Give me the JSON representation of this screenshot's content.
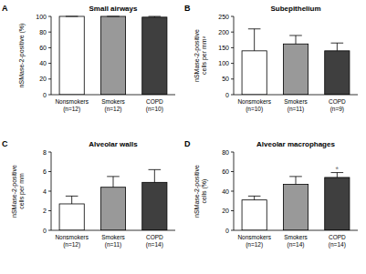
{
  "chart_data": [
    {
      "type": "bar",
      "label": "A",
      "title": "Small airways",
      "y_label": "nSMase-2-positive (%)",
      "categories": [
        "Nonsmokers\n(n=12)",
        "Smokers\n(n=12)",
        "COPD\n(n=10)"
      ],
      "values": [
        100,
        100,
        99
      ],
      "errors": [
        0,
        0,
        1
      ],
      "colors": [
        "#ffffff",
        "#999999",
        "#3f3f3f"
      ],
      "ylim": [
        0,
        100
      ],
      "yticks": [
        0,
        20,
        40,
        60,
        80,
        100
      ]
    },
    {
      "type": "bar",
      "label": "B",
      "title": "Subepithelium",
      "y_label": "nSMase-2-positive\ncells per mm²",
      "categories": [
        "Nonsmokers\n(n=10)",
        "Smokers\n(n=11)",
        "COPD\n(n=9)"
      ],
      "values": [
        140,
        162,
        140
      ],
      "errors": [
        70,
        27,
        25
      ],
      "colors": [
        "#ffffff",
        "#999999",
        "#3f3f3f"
      ],
      "ylim": [
        0,
        250
      ],
      "yticks": [
        0,
        50,
        100,
        150,
        200,
        250
      ]
    },
    {
      "type": "bar",
      "label": "C",
      "title": "Alveolar walls",
      "y_label": "nSMase-2-positive\ncells per mm",
      "categories": [
        "Nonsmokers\n(n=12)",
        "Smokers\n(n=11)",
        "COPD\n(n=14)"
      ],
      "values": [
        2.7,
        4.4,
        4.9
      ],
      "errors": [
        0.8,
        1.1,
        1.3
      ],
      "colors": [
        "#ffffff",
        "#999999",
        "#3f3f3f"
      ],
      "ylim": [
        0,
        8
      ],
      "yticks": [
        0,
        2,
        4,
        6,
        8
      ]
    },
    {
      "type": "bar",
      "label": "D",
      "title": "Alveolar macrophages",
      "y_label": "nSMase-2-positive\ncells (%)",
      "categories": [
        "Nonsmokers\n(n=12)",
        "Smokers\n(n=14)",
        "COPD\n(n=14)"
      ],
      "values": [
        31,
        47,
        54
      ],
      "errors": [
        4,
        8,
        5
      ],
      "colors": [
        "#ffffff",
        "#999999",
        "#3f3f3f"
      ],
      "ylim": [
        0,
        80
      ],
      "yticks": [
        0,
        20,
        40,
        60,
        80
      ],
      "annotations": [
        {
          "text": "*",
          "x": 2
        }
      ]
    }
  ]
}
